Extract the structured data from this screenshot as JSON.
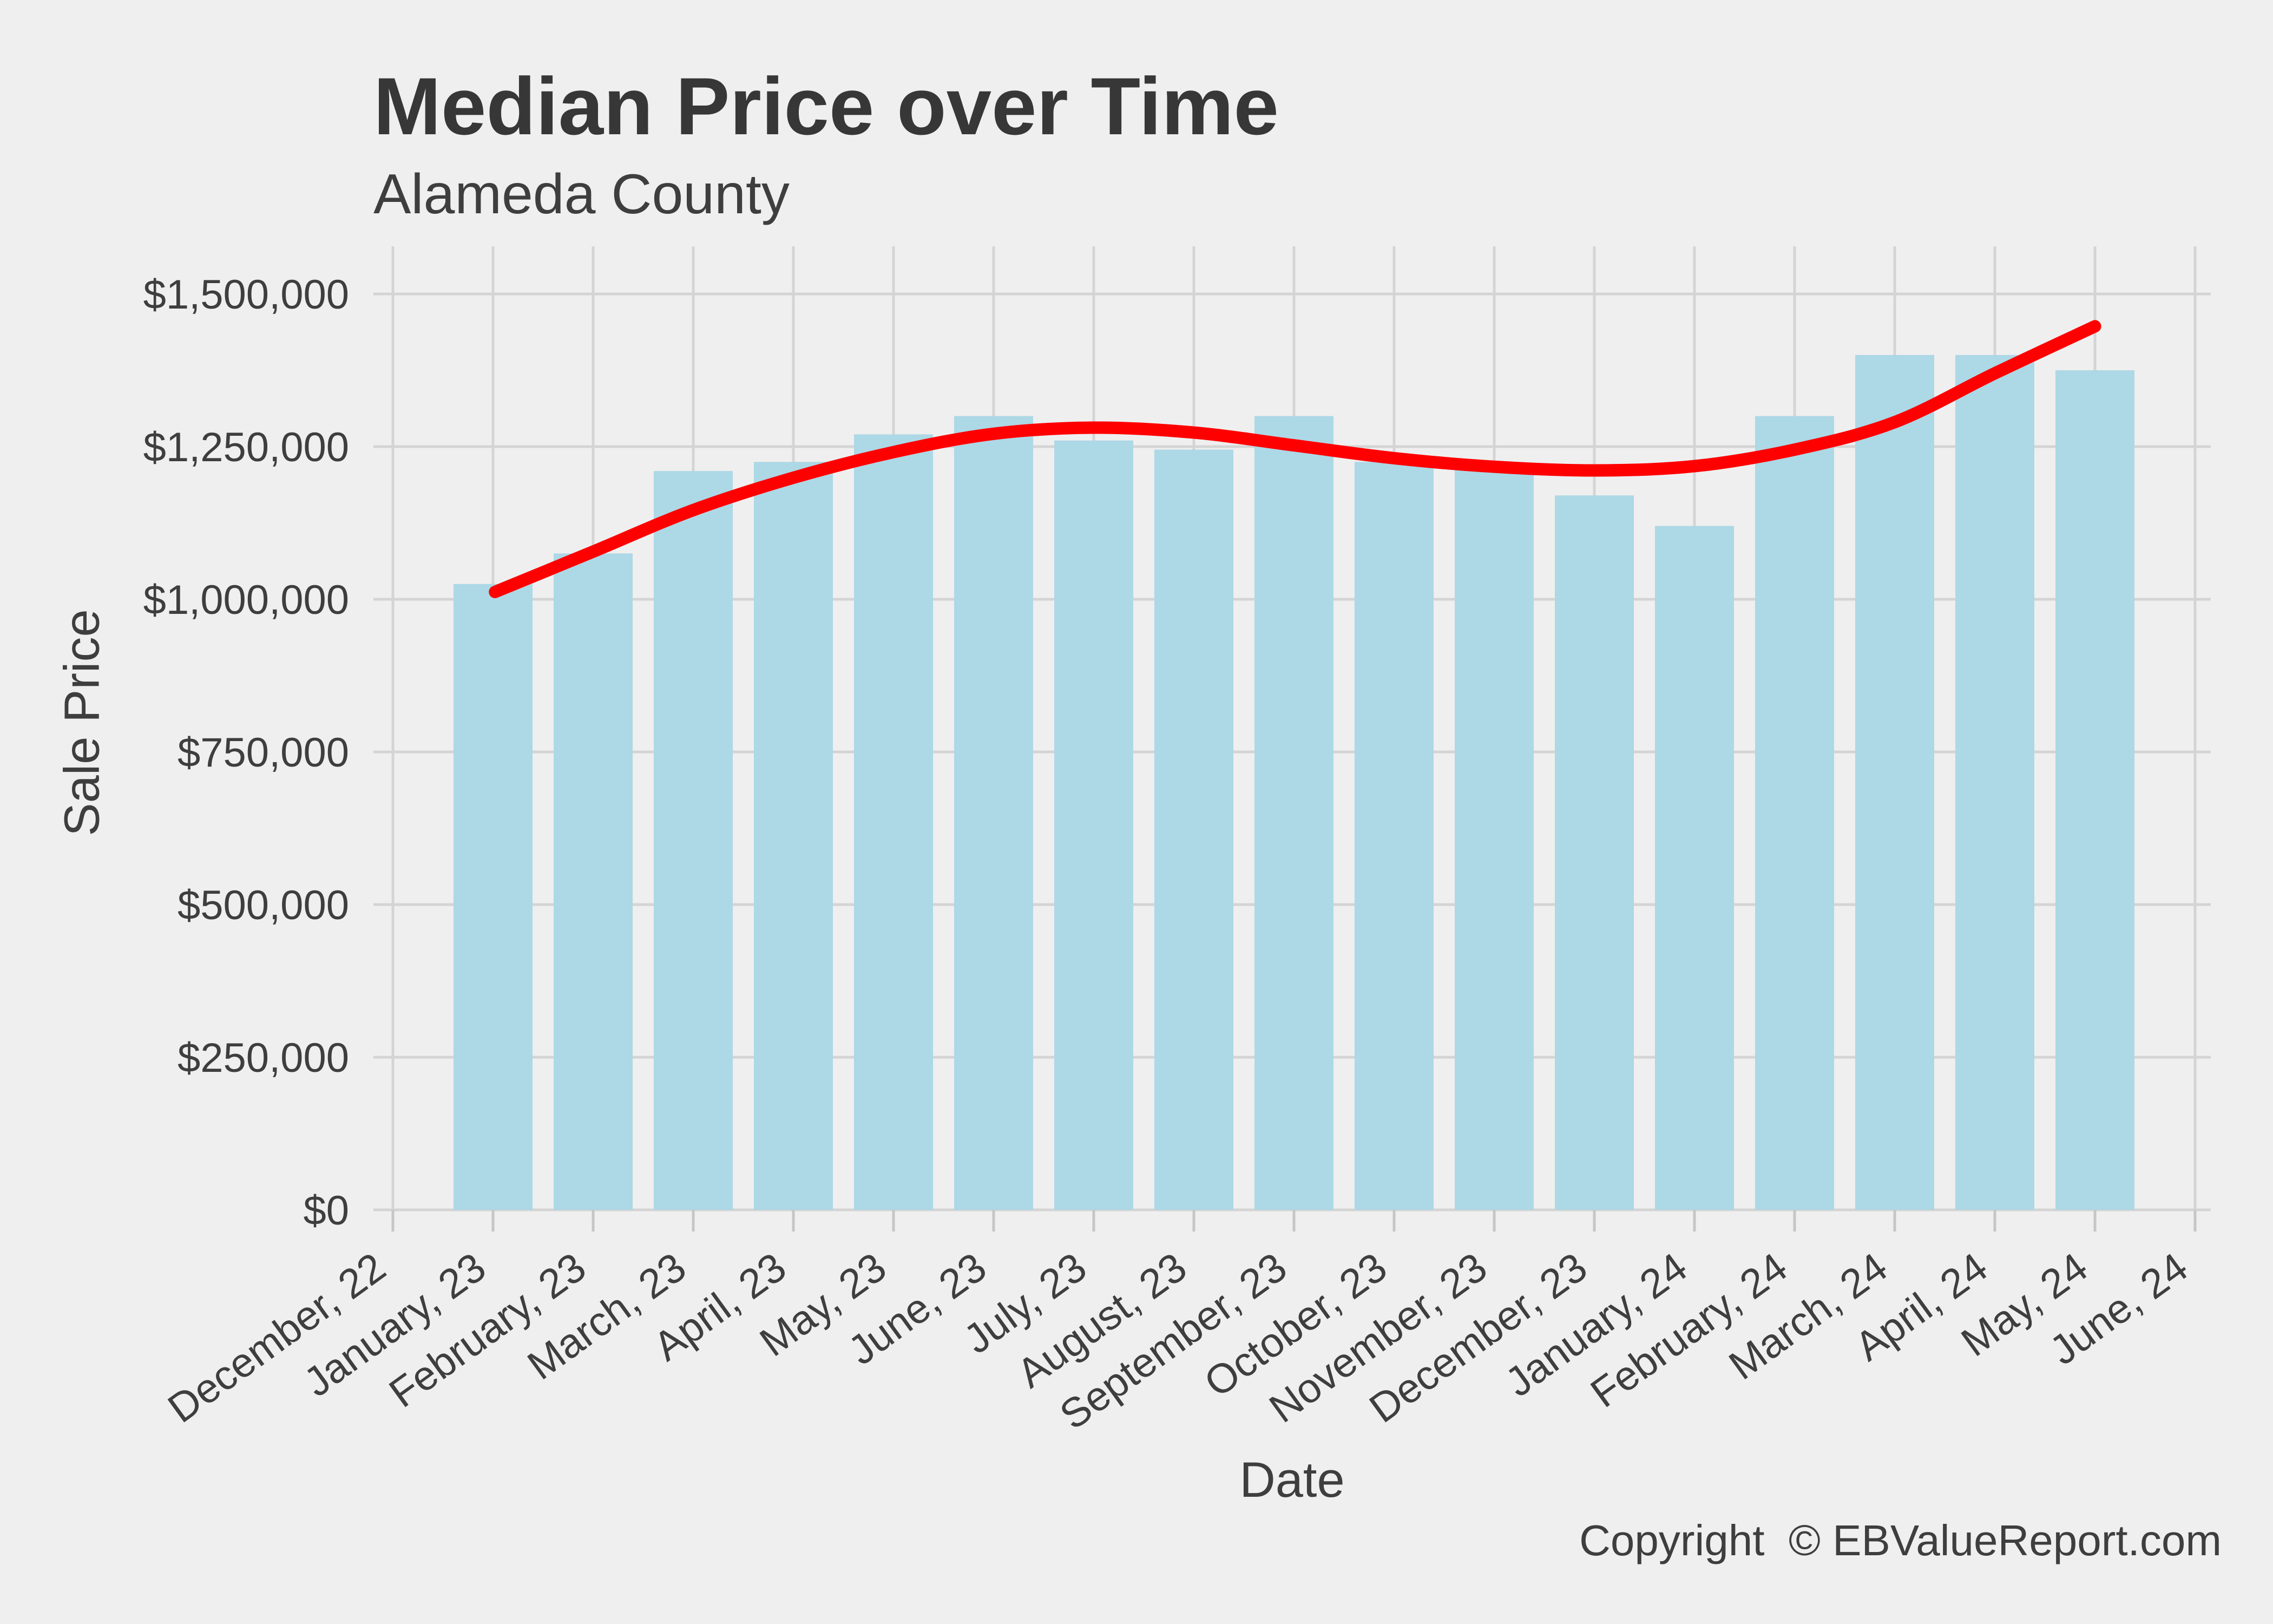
{
  "page": {
    "background": "#EFEFEF"
  },
  "header": {
    "title": "Median Price over Time",
    "subtitle": "Alameda County"
  },
  "footer": {
    "copyright": "Copyright  © EBValueReport.com"
  },
  "chart_data": {
    "type": "bar",
    "title": "Median Price over Time",
    "subtitle": "Alameda County",
    "xlabel": "Date",
    "ylabel": "Sale Price",
    "categories": [
      "December, 22",
      "January, 23",
      "February, 23",
      "March, 23",
      "April, 23",
      "May, 23",
      "June, 23",
      "July, 23",
      "August, 23",
      "September, 23",
      "October, 23",
      "November, 23",
      "December, 23",
      "January, 24",
      "February, 24",
      "March, 24",
      "April, 24",
      "May, 24",
      "June, 24"
    ],
    "values": [
      null,
      1025000,
      1075000,
      1210000,
      1225000,
      1270000,
      1300000,
      1260000,
      1245000,
      1300000,
      1225000,
      1215000,
      1170000,
      1120000,
      1300000,
      1400000,
      1400000,
      1375000,
      null
    ],
    "series": [
      {
        "name": "Median Sale Price",
        "type": "bar",
        "color": "#ADD8E6"
      },
      {
        "name": "Smoothed Trend",
        "type": "line",
        "color": "#FF0000"
      }
    ],
    "trend_points": [
      {
        "x": 1.02,
        "y": 1012000
      },
      {
        "x": 2,
        "y": 1078000
      },
      {
        "x": 3,
        "y": 1146000
      },
      {
        "x": 4,
        "y": 1199000
      },
      {
        "x": 5,
        "y": 1241000
      },
      {
        "x": 6,
        "y": 1271000
      },
      {
        "x": 7,
        "y": 1281000
      },
      {
        "x": 8,
        "y": 1273000
      },
      {
        "x": 9,
        "y": 1252000
      },
      {
        "x": 10,
        "y": 1231000
      },
      {
        "x": 11,
        "y": 1217000
      },
      {
        "x": 12,
        "y": 1211000
      },
      {
        "x": 13,
        "y": 1218000
      },
      {
        "x": 14,
        "y": 1245000
      },
      {
        "x": 15,
        "y": 1290000
      },
      {
        "x": 16,
        "y": 1370000
      },
      {
        "x": 17,
        "y": 1447000
      }
    ],
    "ylim": [
      0,
      1500000
    ],
    "y_ticks": [
      {
        "value": 0,
        "label": "$0"
      },
      {
        "value": 250000,
        "label": "$250,000"
      },
      {
        "value": 500000,
        "label": "$500,000"
      },
      {
        "value": 750000,
        "label": "$750,000"
      },
      {
        "value": 1000000,
        "label": "$1,000,000"
      },
      {
        "value": 1250000,
        "label": "$1,250,000"
      },
      {
        "value": 1500000,
        "label": "$1,500,000"
      }
    ],
    "grid": "major-both",
    "legend": false,
    "x_tick_angle_deg": -36,
    "colors": {
      "bar": "#ADD8E6",
      "line": "#FF0000",
      "grid": "#D4D4D4",
      "axis_tick": "#C6C6C6",
      "text": "#3E3E3E",
      "background": "#EFEFEF"
    }
  }
}
